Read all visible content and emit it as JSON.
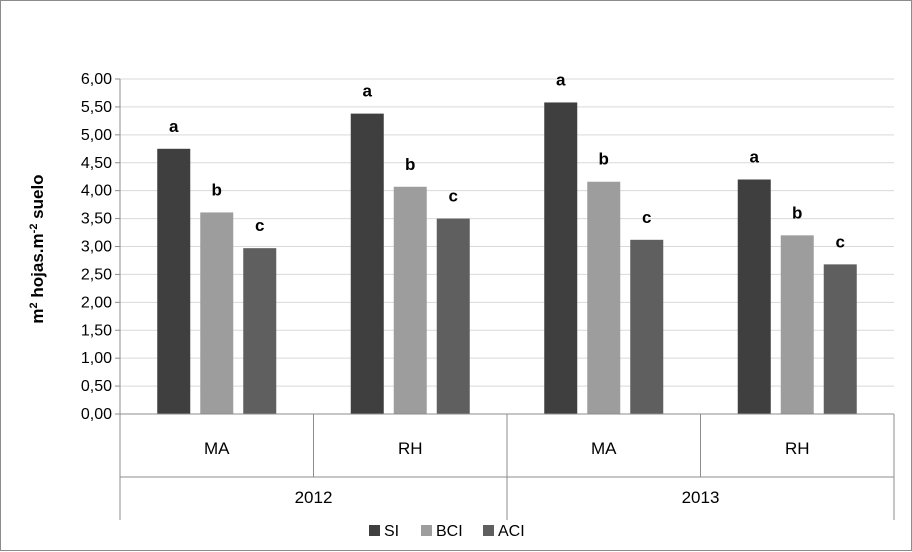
{
  "chart_data": {
    "type": "bar",
    "groups": [
      {
        "label": "2012",
        "categories": [
          "MA",
          "RH"
        ]
      },
      {
        "label": "2013",
        "categories": [
          "MA",
          "RH"
        ]
      }
    ],
    "categories": [
      "MA",
      "RH",
      "MA",
      "RH"
    ],
    "series": [
      {
        "name": "SI",
        "color": "#3f3f3f",
        "values": [
          4.75,
          5.38,
          5.58,
          4.2
        ],
        "letters": [
          "a",
          "a",
          "a",
          "a"
        ]
      },
      {
        "name": "BCI",
        "color": "#9d9d9d",
        "values": [
          3.61,
          4.07,
          4.16,
          3.2
        ],
        "letters": [
          "b",
          "b",
          "b",
          "b"
        ]
      },
      {
        "name": "ACI",
        "color": "#5f5f5f",
        "values": [
          2.97,
          3.5,
          3.12,
          2.68
        ],
        "letters": [
          "c",
          "c",
          "c",
          "c"
        ]
      }
    ],
    "ylabel_base": "m",
    "ylabel_sup1": "2",
    "ylabel_mid": " hojas.m",
    "ylabel_sup2": "-2",
    "ylabel_end": " suelo",
    "ylim": [
      0,
      6
    ],
    "ytick_step": 0.5,
    "ytick_labels": [
      "0,00",
      "0,50",
      "1,00",
      "1,50",
      "2,00",
      "2,50",
      "3,00",
      "3,50",
      "4,00",
      "4,50",
      "5,00",
      "5,50",
      "6,00"
    ],
    "grid": true,
    "legend_position": "bottom"
  }
}
